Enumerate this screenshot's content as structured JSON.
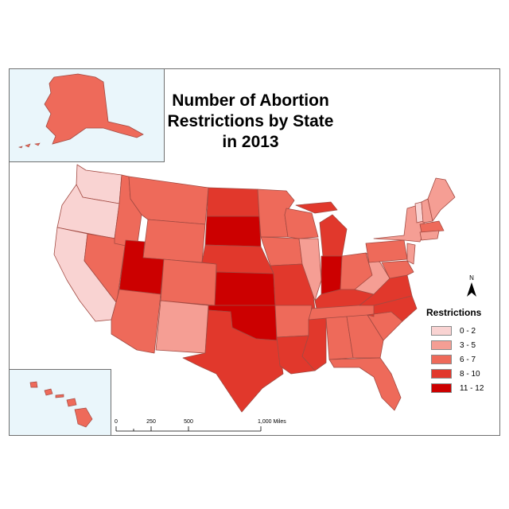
{
  "title_line1": "Number of Abortion Restrictions by State",
  "title_line2": "in 2013",
  "legend": {
    "title": "Restrictions",
    "classes": [
      {
        "label": "0 - 2",
        "color": "#f9d3d2"
      },
      {
        "label": "3 - 5",
        "color": "#f59e94"
      },
      {
        "label": "6 - 7",
        "color": "#ee6a5a"
      },
      {
        "label": "8 - 10",
        "color": "#e1382c"
      },
      {
        "label": "11 - 12",
        "color": "#cc0000"
      }
    ]
  },
  "north_arrow": {
    "label": "N"
  },
  "scale_bar": {
    "ticks": [
      "0",
      "250",
      "500",
      "1,000 Miles"
    ]
  },
  "insets": [
    "alaska",
    "hawaii"
  ],
  "colors": {
    "border": "#a24a42",
    "inset_bg": "#eaf6fb"
  }
}
